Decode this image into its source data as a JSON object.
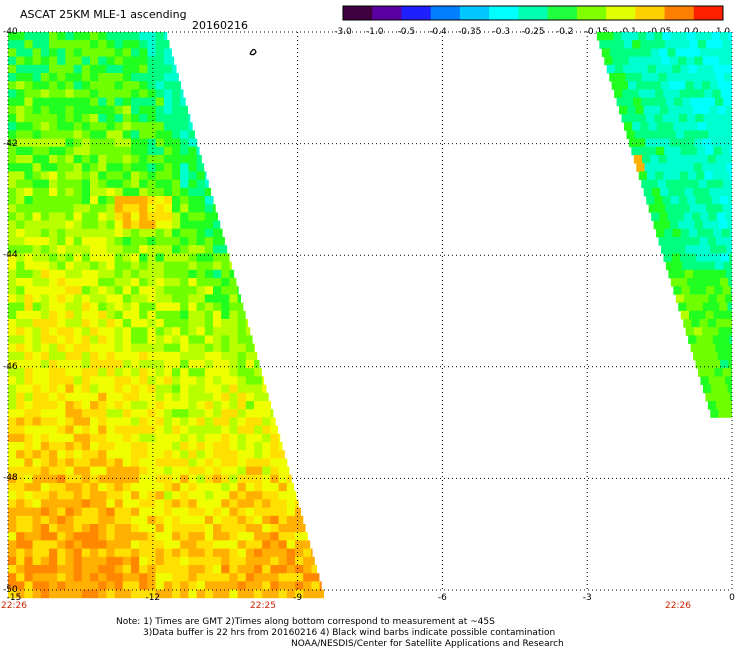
{
  "header": {
    "title": "ASCAT 25KM MLE-1 ascending",
    "date": "20160216"
  },
  "colorbar": {
    "labels": [
      "-3.0",
      "-1.0",
      "-0.5",
      "-0.4",
      "-0.35",
      "-0.3",
      "-0.25",
      "-0.2",
      "-0.15",
      "-0.1",
      "-0.05",
      "0.0",
      "1.0"
    ],
    "colors": [
      "#400040",
      "#5a00a0",
      "#2020ff",
      "#0080ff",
      "#00c8ff",
      "#00ffff",
      "#00ffb0",
      "#20ff40",
      "#80ff00",
      "#e0ff00",
      "#ffd000",
      "#ff8000",
      "#ff2000"
    ]
  },
  "map": {
    "lon_range": [
      -15,
      0
    ],
    "lat_range": [
      -50,
      -40
    ],
    "x_ticks": [
      "-15",
      "-12",
      "-9",
      "-6",
      "-3",
      "0"
    ],
    "y_ticks": [
      "-40",
      "-42",
      "-44",
      "-46",
      "-48",
      "-50"
    ],
    "time_labels": [
      "22:26",
      "22:25",
      "22:26"
    ],
    "swath_west": {
      "lon_start": -15,
      "lon_end_bottom": -8.45,
      "lon_end_top": -11.7,
      "dominant_values": "green (-0.2 to -0.15) north, yellow/orange (-0.1 to 0.0) south"
    },
    "swath_east": {
      "lon_start_top": -2.8,
      "lon_start_bottom": -0.4,
      "lon_end": 0,
      "lat_bottom": -46.9,
      "dominant_values": "cyan/green (-0.3 to -0.15)"
    }
  },
  "notes": {
    "line1": "Note: 1) Times are GMT 2)Times along bottom correspond to measurement at ~45S",
    "line2": "3)Data buffer is 22 hrs from 20160216 4) Black wind barbs indicate possible contamination",
    "line3": "NOAA/NESDIS/Center for Satellite Applications and Research"
  }
}
